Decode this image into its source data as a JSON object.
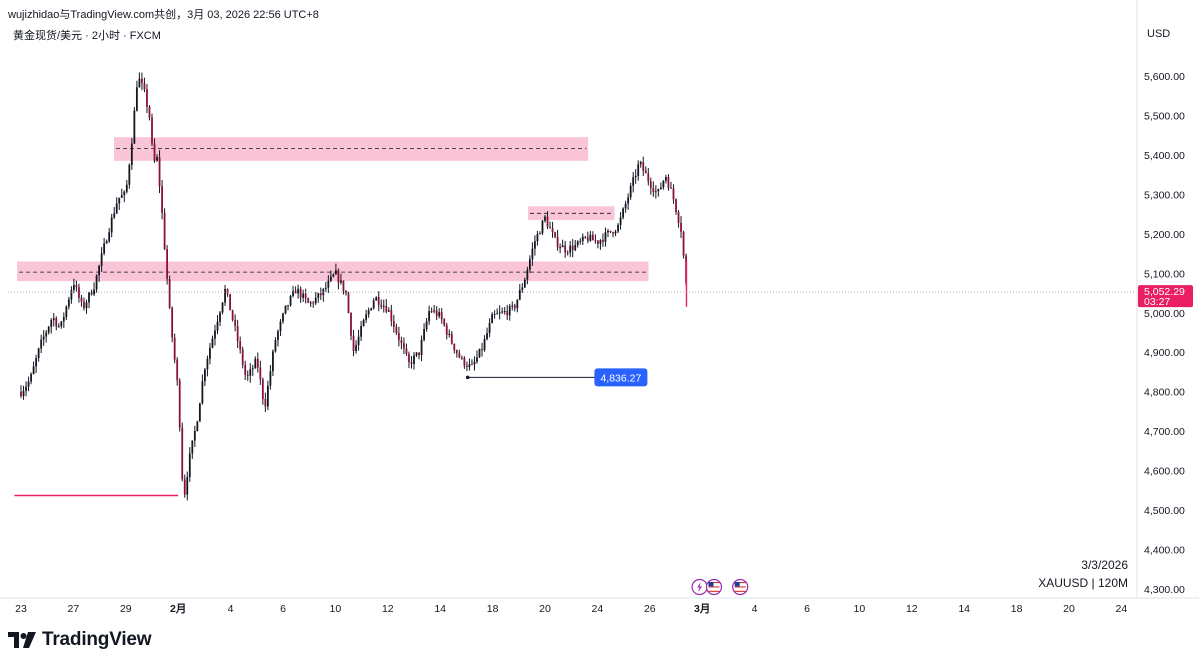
{
  "header": {
    "share_line": "wujizhidao与TradingView.com共创，3月 03, 2026 22:56 UTC+8",
    "symbol_line": "黄金现货/美元 · 2小时 · FXCM",
    "currency": "USD"
  },
  "watermark": {
    "date": "3/3/2026",
    "ticker": "XAUUSD | 120M"
  },
  "brand": {
    "name": "TradingView",
    "logo_icon": "tradingview-logo-icon"
  },
  "colors": {
    "up": "#131722",
    "down": "#131722",
    "wick": "#131722",
    "zone_fill": "#f8bbd0",
    "price_tag": "#e91e63",
    "level_tag": "#2962ff",
    "red_line": "#e91e63"
  },
  "chart_data": {
    "type": "candlestick",
    "title": "",
    "xlabel": "",
    "ylabel": "",
    "ylim": [
      4280,
      5660
    ],
    "y_ticks": [
      {
        "value": 4300,
        "label": "4,300.00"
      },
      {
        "value": 4400,
        "label": "4,400.00"
      },
      {
        "value": 4500,
        "label": "4,500.00"
      },
      {
        "value": 4600,
        "label": "4,600.00"
      },
      {
        "value": 4700,
        "label": "4,700.00"
      },
      {
        "value": 4800,
        "label": "4,800.00"
      },
      {
        "value": 4900,
        "label": "4,900.00"
      },
      {
        "value": 5000,
        "label": "5,000.00"
      },
      {
        "value": 5100,
        "label": "5,100.00"
      },
      {
        "value": 5200,
        "label": "5,200.00"
      },
      {
        "value": 5300,
        "label": "5,300.00"
      },
      {
        "value": 5400,
        "label": "5,400.00"
      },
      {
        "value": 5500,
        "label": "5,500.00"
      },
      {
        "value": 5600,
        "label": "5,600.00"
      }
    ],
    "x_range_days": [
      -0.2,
      34.2
    ],
    "x_ticks": [
      {
        "day": 0,
        "label": "23",
        "bold": false
      },
      {
        "day": 2,
        "label": "27",
        "bold": false
      },
      {
        "day": 4,
        "label": "29",
        "bold": false
      },
      {
        "day": 6,
        "label": "2月",
        "bold": true
      },
      {
        "day": 8,
        "label": "4",
        "bold": false
      },
      {
        "day": 10,
        "label": "6",
        "bold": false
      },
      {
        "day": 12,
        "label": "10",
        "bold": false
      },
      {
        "day": 14,
        "label": "12",
        "bold": false
      },
      {
        "day": 16,
        "label": "14",
        "bold": false
      },
      {
        "day": 18,
        "label": "18",
        "bold": false
      },
      {
        "day": 20,
        "label": "20",
        "bold": false
      },
      {
        "day": 22,
        "label": "24",
        "bold": false
      },
      {
        "day": 24,
        "label": "26",
        "bold": false
      },
      {
        "day": 26,
        "label": "3月",
        "bold": true
      },
      {
        "day": 28,
        "label": "4",
        "bold": false
      },
      {
        "day": 30,
        "label": "6",
        "bold": false
      },
      {
        "day": 32,
        "label": "10",
        "bold": false
      },
      {
        "day": 34,
        "label": "12",
        "bold": false
      },
      {
        "day": 36,
        "label": "14",
        "bold": false
      },
      {
        "day": 38,
        "label": "18",
        "bold": false
      },
      {
        "day": 40,
        "label": "20",
        "bold": false
      },
      {
        "day": 42,
        "label": "24",
        "bold": false
      }
    ],
    "path_points": [
      [
        0.0,
        4800
      ],
      [
        0.35,
        4830
      ],
      [
        0.75,
        4920
      ],
      [
        1.2,
        4990
      ],
      [
        1.5,
        4960
      ],
      [
        2.0,
        5080
      ],
      [
        2.35,
        5010
      ],
      [
        2.8,
        5070
      ],
      [
        3.3,
        5200
      ],
      [
        3.7,
        5290
      ],
      [
        4.0,
        5300
      ],
      [
        4.25,
        5450
      ],
      [
        4.45,
        5600
      ],
      [
        4.7,
        5560
      ],
      [
        4.9,
        5500
      ],
      [
        5.05,
        5380
      ],
      [
        5.2,
        5390
      ],
      [
        5.35,
        5280
      ],
      [
        5.7,
        4980
      ],
      [
        6.0,
        4800
      ],
      [
        6.2,
        4520
      ],
      [
        6.4,
        4620
      ],
      [
        6.7,
        4720
      ],
      [
        7.0,
        4860
      ],
      [
        7.4,
        4960
      ],
      [
        7.8,
        5060
      ],
      [
        8.2,
        4950
      ],
      [
        8.6,
        4830
      ],
      [
        9.0,
        4880
      ],
      [
        9.3,
        4760
      ],
      [
        9.7,
        4930
      ],
      [
        10.1,
        5010
      ],
      [
        10.5,
        5060
      ],
      [
        11.0,
        5020
      ],
      [
        11.5,
        5050
      ],
      [
        12.0,
        5100
      ],
      [
        12.4,
        5050
      ],
      [
        12.7,
        4900
      ],
      [
        13.1,
        4980
      ],
      [
        13.5,
        5040
      ],
      [
        14.0,
        5010
      ],
      [
        14.4,
        4940
      ],
      [
        14.8,
        4870
      ],
      [
        15.2,
        4900
      ],
      [
        15.6,
        5010
      ],
      [
        16.0,
        4990
      ],
      [
        16.4,
        4930
      ],
      [
        16.8,
        4880
      ],
      [
        17.2,
        4860
      ],
      [
        17.6,
        4910
      ],
      [
        18.0,
        4990
      ],
      [
        18.4,
        5000
      ],
      [
        18.8,
        5010
      ],
      [
        19.2,
        5080
      ],
      [
        19.6,
        5180
      ],
      [
        20.0,
        5240
      ],
      [
        20.4,
        5180
      ],
      [
        20.8,
        5160
      ],
      [
        21.2,
        5170
      ],
      [
        21.6,
        5190
      ],
      [
        22.0,
        5180
      ],
      [
        22.4,
        5200
      ],
      [
        22.8,
        5220
      ],
      [
        23.2,
        5300
      ],
      [
        23.6,
        5380
      ],
      [
        24.0,
        5330
      ],
      [
        24.3,
        5300
      ],
      [
        24.6,
        5350
      ],
      [
        24.9,
        5290
      ],
      [
        25.2,
        5210
      ],
      [
        25.4,
        5060
      ]
    ],
    "zones": [
      {
        "name": "zone-5420",
        "y_top": 5445,
        "y_bottom": 5385,
        "center": 5416,
        "x_start": 3.55,
        "x_end": 21.65
      },
      {
        "name": "zone-5250",
        "y_top": 5270,
        "y_bottom": 5235,
        "center": 5252,
        "x_start": 19.35,
        "x_end": 22.65
      },
      {
        "name": "zone-5100",
        "y_top": 5130,
        "y_bottom": 5080,
        "center": 5103,
        "x_start": -0.15,
        "x_end": 23.95
      }
    ],
    "levels": [
      {
        "name": "level-4836",
        "value": 4836.27,
        "label": "4,836.27",
        "x_start": 17.05,
        "x_end": 22.0
      },
      {
        "name": "red-line-4537",
        "value": 4537,
        "label": "",
        "x_start": -0.25,
        "x_end": 6.0
      }
    ],
    "last_price": {
      "value": 5052.29,
      "label": "5,052.29",
      "countdown": "03:27"
    },
    "event_icons": [
      {
        "name": "lightning-event-icon",
        "day": 25.9
      },
      {
        "name": "us-flag-event-icon",
        "day": 26.45
      },
      {
        "name": "us-flag-event-icon",
        "day": 27.45
      }
    ]
  }
}
